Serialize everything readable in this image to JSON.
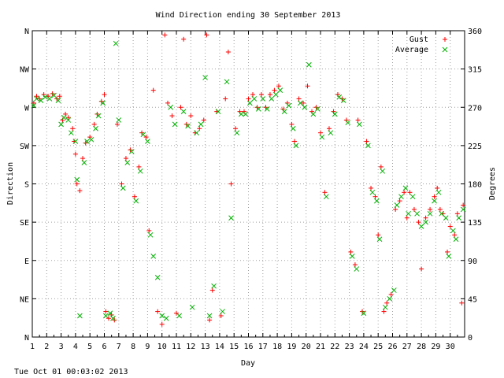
{
  "timestamp": "Tue Oct 01 00:03:02 2013",
  "chart_data": {
    "type": "scatter",
    "title": "Wind Direction ending 30 September 2013",
    "xlabel": "Day",
    "ylabel_left": "Direction",
    "ylabel_right": "Degrees",
    "xlim": [
      1,
      31
    ],
    "ylim": [
      0,
      360
    ],
    "grid": true,
    "legend_position": "top-right",
    "x_ticks": [
      "1",
      "2",
      "3",
      "4",
      "5",
      "6",
      "7",
      "8",
      "9",
      "10",
      "11",
      "12",
      "13",
      "14",
      "15",
      "16",
      "17",
      "18",
      "19",
      "20",
      "21",
      "22",
      "23",
      "24",
      "25",
      "26",
      "27",
      "28",
      "29",
      "30"
    ],
    "y_ticks_left": [
      {
        "value": 0,
        "label": "N"
      },
      {
        "value": 45,
        "label": "NE"
      },
      {
        "value": 90,
        "label": "E"
      },
      {
        "value": 135,
        "label": "SE"
      },
      {
        "value": 180,
        "label": "S"
      },
      {
        "value": 225,
        "label": "SW"
      },
      {
        "value": 270,
        "label": "W"
      },
      {
        "value": 315,
        "label": "NW"
      },
      {
        "value": 360,
        "label": "N"
      }
    ],
    "y_ticks_right": [
      "0",
      "45",
      "90",
      "135",
      "180",
      "225",
      "270",
      "315",
      "360"
    ],
    "series": [
      {
        "name": "Gust",
        "color": "#ff0000",
        "marker": "+",
        "points": [
          [
            1.1,
            275
          ],
          [
            1.3,
            283
          ],
          [
            1.5,
            280
          ],
          [
            1.8,
            285
          ],
          [
            2.1,
            283
          ],
          [
            2.4,
            286
          ],
          [
            2.7,
            280
          ],
          [
            2.9,
            283
          ],
          [
            3.1,
            255
          ],
          [
            3.3,
            262
          ],
          [
            3.5,
            258
          ],
          [
            3.8,
            245
          ],
          [
            3.9,
            230
          ],
          [
            4.0,
            215
          ],
          [
            4.1,
            180
          ],
          [
            4.3,
            172
          ],
          [
            4.5,
            210
          ],
          [
            4.7,
            228
          ],
          [
            5.0,
            235
          ],
          [
            5.3,
            250
          ],
          [
            5.5,
            262
          ],
          [
            5.8,
            277
          ],
          [
            6.0,
            285
          ],
          [
            6.1,
            30
          ],
          [
            6.3,
            22
          ],
          [
            6.5,
            26
          ],
          [
            6.7,
            20
          ],
          [
            6.9,
            250
          ],
          [
            7.2,
            180
          ],
          [
            7.5,
            210
          ],
          [
            7.8,
            220
          ],
          [
            8.1,
            165
          ],
          [
            8.4,
            200
          ],
          [
            8.6,
            240
          ],
          [
            8.9,
            235
          ],
          [
            9.1,
            125
          ],
          [
            9.4,
            290
          ],
          [
            9.7,
            30
          ],
          [
            10.0,
            15
          ],
          [
            10.2,
            355
          ],
          [
            10.4,
            275
          ],
          [
            10.7,
            260
          ],
          [
            11.0,
            28
          ],
          [
            11.3,
            270
          ],
          [
            11.5,
            350
          ],
          [
            11.7,
            250
          ],
          [
            12.0,
            260
          ],
          [
            12.3,
            240
          ],
          [
            12.6,
            245
          ],
          [
            12.9,
            255
          ],
          [
            13.1,
            355
          ],
          [
            13.3,
            20
          ],
          [
            13.5,
            55
          ],
          [
            13.8,
            265
          ],
          [
            14.1,
            25
          ],
          [
            14.4,
            280
          ],
          [
            14.6,
            335
          ],
          [
            14.8,
            180
          ],
          [
            15.1,
            245
          ],
          [
            15.4,
            265
          ],
          [
            15.7,
            265
          ],
          [
            16.0,
            280
          ],
          [
            16.3,
            285
          ],
          [
            16.6,
            270
          ],
          [
            16.9,
            285
          ],
          [
            17.2,
            270
          ],
          [
            17.5,
            285
          ],
          [
            17.8,
            290
          ],
          [
            18.1,
            295
          ],
          [
            18.4,
            268
          ],
          [
            18.7,
            275
          ],
          [
            19.0,
            250
          ],
          [
            19.2,
            230
          ],
          [
            19.5,
            280
          ],
          [
            19.8,
            275
          ],
          [
            20.1,
            295
          ],
          [
            20.4,
            265
          ],
          [
            20.7,
            270
          ],
          [
            21.0,
            240
          ],
          [
            21.3,
            170
          ],
          [
            21.6,
            245
          ],
          [
            21.9,
            265
          ],
          [
            22.2,
            285
          ],
          [
            22.5,
            280
          ],
          [
            22.8,
            255
          ],
          [
            23.1,
            100
          ],
          [
            23.4,
            85
          ],
          [
            23.6,
            255
          ],
          [
            23.9,
            30
          ],
          [
            24.2,
            230
          ],
          [
            24.5,
            175
          ],
          [
            24.8,
            165
          ],
          [
            25.0,
            120
          ],
          [
            25.2,
            200
          ],
          [
            25.4,
            30
          ],
          [
            25.6,
            40
          ],
          [
            25.9,
            50
          ],
          [
            26.2,
            150
          ],
          [
            26.5,
            160
          ],
          [
            26.8,
            170
          ],
          [
            27.0,
            140
          ],
          [
            27.2,
            170
          ],
          [
            27.5,
            150
          ],
          [
            27.8,
            135
          ],
          [
            28.0,
            80
          ],
          [
            28.3,
            140
          ],
          [
            28.6,
            150
          ],
          [
            28.9,
            165
          ],
          [
            29.1,
            175
          ],
          [
            29.3,
            150
          ],
          [
            29.5,
            145
          ],
          [
            29.8,
            100
          ],
          [
            30.0,
            130
          ],
          [
            30.3,
            120
          ],
          [
            30.5,
            145
          ],
          [
            30.8,
            40
          ],
          [
            30.9,
            155
          ]
        ]
      },
      {
        "name": "Average",
        "color": "#00b000",
        "marker": "x",
        "points": [
          [
            1.1,
            272
          ],
          [
            1.3,
            280
          ],
          [
            1.6,
            278
          ],
          [
            1.9,
            282
          ],
          [
            2.2,
            280
          ],
          [
            2.5,
            284
          ],
          [
            2.8,
            278
          ],
          [
            3.0,
            250
          ],
          [
            3.2,
            258
          ],
          [
            3.5,
            255
          ],
          [
            3.7,
            240
          ],
          [
            4.0,
            230
          ],
          [
            4.1,
            185
          ],
          [
            4.3,
            25
          ],
          [
            4.6,
            205
          ],
          [
            4.8,
            230
          ],
          [
            5.1,
            232
          ],
          [
            5.4,
            245
          ],
          [
            5.6,
            260
          ],
          [
            5.9,
            275
          ],
          [
            6.1,
            25
          ],
          [
            6.4,
            28
          ],
          [
            6.6,
            22
          ],
          [
            6.8,
            345
          ],
          [
            7.0,
            255
          ],
          [
            7.3,
            175
          ],
          [
            7.6,
            205
          ],
          [
            7.9,
            218
          ],
          [
            8.2,
            160
          ],
          [
            8.5,
            195
          ],
          [
            8.7,
            238
          ],
          [
            9.0,
            230
          ],
          [
            9.2,
            120
          ],
          [
            9.4,
            95
          ],
          [
            9.7,
            70
          ],
          [
            10.0,
            25
          ],
          [
            10.3,
            22
          ],
          [
            10.6,
            270
          ],
          [
            10.9,
            250
          ],
          [
            11.2,
            25
          ],
          [
            11.5,
            265
          ],
          [
            11.8,
            248
          ],
          [
            12.1,
            35
          ],
          [
            12.4,
            240
          ],
          [
            12.7,
            250
          ],
          [
            13.0,
            305
          ],
          [
            13.3,
            25
          ],
          [
            13.6,
            60
          ],
          [
            13.9,
            265
          ],
          [
            14.2,
            30
          ],
          [
            14.5,
            300
          ],
          [
            14.8,
            140
          ],
          [
            15.2,
            240
          ],
          [
            15.5,
            262
          ],
          [
            15.8,
            262
          ],
          [
            16.1,
            275
          ],
          [
            16.4,
            280
          ],
          [
            16.7,
            268
          ],
          [
            17.0,
            280
          ],
          [
            17.3,
            268
          ],
          [
            17.6,
            280
          ],
          [
            17.9,
            285
          ],
          [
            18.2,
            290
          ],
          [
            18.5,
            265
          ],
          [
            18.8,
            272
          ],
          [
            19.1,
            245
          ],
          [
            19.3,
            225
          ],
          [
            19.6,
            275
          ],
          [
            19.9,
            270
          ],
          [
            20.2,
            320
          ],
          [
            20.5,
            262
          ],
          [
            20.8,
            268
          ],
          [
            21.1,
            235
          ],
          [
            21.4,
            165
          ],
          [
            21.7,
            240
          ],
          [
            22.0,
            262
          ],
          [
            22.3,
            282
          ],
          [
            22.6,
            278
          ],
          [
            22.9,
            252
          ],
          [
            23.2,
            95
          ],
          [
            23.5,
            80
          ],
          [
            23.7,
            250
          ],
          [
            24.0,
            28
          ],
          [
            24.3,
            225
          ],
          [
            24.6,
            170
          ],
          [
            24.9,
            160
          ],
          [
            25.1,
            115
          ],
          [
            25.3,
            195
          ],
          [
            25.5,
            35
          ],
          [
            25.8,
            45
          ],
          [
            26.1,
            55
          ],
          [
            26.3,
            155
          ],
          [
            26.6,
            165
          ],
          [
            26.9,
            175
          ],
          [
            27.1,
            145
          ],
          [
            27.4,
            165
          ],
          [
            27.7,
            145
          ],
          [
            28.0,
            130
          ],
          [
            28.3,
            135
          ],
          [
            28.6,
            145
          ],
          [
            28.9,
            160
          ],
          [
            29.2,
            170
          ],
          [
            29.4,
            145
          ],
          [
            29.7,
            140
          ],
          [
            29.9,
            95
          ],
          [
            30.2,
            125
          ],
          [
            30.4,
            115
          ],
          [
            30.6,
            140
          ],
          [
            30.9,
            150
          ]
        ]
      }
    ]
  }
}
